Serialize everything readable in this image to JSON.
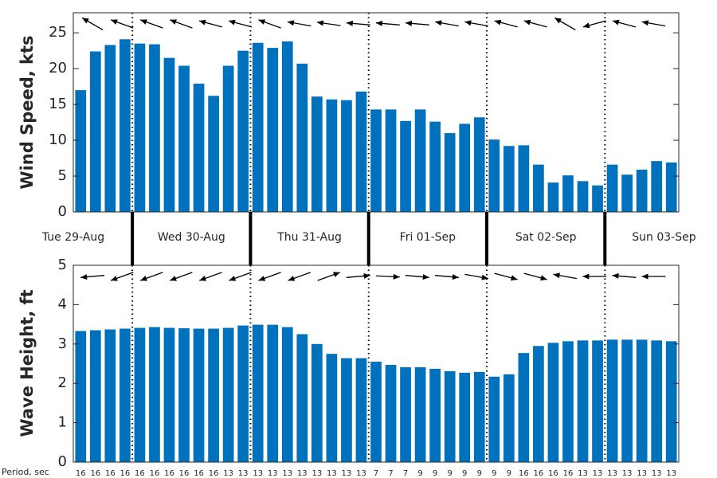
{
  "chart_data": [
    {
      "type": "bar",
      "ylabel": "Wind Speed, kts",
      "color": "#0072bd",
      "ylim": [
        0,
        27.8
      ],
      "yticks": [
        0,
        5,
        10,
        15,
        20,
        25
      ],
      "values": [
        17,
        22.4,
        23.3,
        24.1,
        23.5,
        23.4,
        21.5,
        20.4,
        17.9,
        16.2,
        20.4,
        22.5,
        23.6,
        22.9,
        23.8,
        20.7,
        16.1,
        15.7,
        15.6,
        16.8,
        14.3,
        14.3,
        12.7,
        14.3,
        12.6,
        11.0,
        12.3,
        13.2,
        10.1,
        9.2,
        9.3,
        6.6,
        4.1,
        5.1,
        4.3,
        3.7,
        6.6,
        5.2,
        5.9,
        7.1,
        6.9
      ],
      "direction_deg": [
        150,
        160,
        160,
        160,
        165,
        165,
        160,
        170,
        172,
        175,
        175,
        175,
        170,
        170,
        165,
        165,
        150,
        195,
        165,
        170
      ]
    },
    {
      "type": "bar",
      "ylabel": "Wave Height, ft",
      "color": "#0072bd",
      "ylim": [
        0,
        5
      ],
      "yticks": [
        0,
        1,
        2,
        3,
        4,
        5
      ],
      "values": [
        3.33,
        3.35,
        3.37,
        3.39,
        3.41,
        3.43,
        3.41,
        3.4,
        3.39,
        3.39,
        3.41,
        3.47,
        3.49,
        3.49,
        3.43,
        3.25,
        3.0,
        2.75,
        2.64,
        2.64,
        2.55,
        2.47,
        2.41,
        2.41,
        2.37,
        2.31,
        2.27,
        2.29,
        2.17,
        2.23,
        2.77,
        2.95,
        3.03,
        3.07,
        3.09,
        3.09,
        3.11,
        3.11,
        3.11,
        3.09,
        3.07
      ],
      "direction_deg": [
        185,
        200,
        200,
        200,
        200,
        200,
        200,
        200,
        20,
        5,
        -3,
        -5,
        -5,
        -10,
        -15,
        -15,
        170,
        180,
        175,
        180
      ]
    }
  ],
  "days": [
    {
      "label": "Tue 29-Aug",
      "count": 4
    },
    {
      "label": "Wed 30-Aug",
      "count": 8
    },
    {
      "label": "Thu 31-Aug",
      "count": 8
    },
    {
      "label": "Fri 01-Sep",
      "count": 8
    },
    {
      "label": "Sat 02-Sep",
      "count": 8
    },
    {
      "label": "Sun 03-Sep",
      "count": 5
    }
  ],
  "period": {
    "label": "Period, sec",
    "values": [
      16,
      16,
      16,
      16,
      16,
      16,
      16,
      16,
      16,
      16,
      13,
      13,
      13,
      13,
      13,
      13,
      13,
      13,
      13,
      13,
      7,
      7,
      7,
      9,
      9,
      9,
      9,
      9,
      9,
      9,
      16,
      16,
      16,
      16,
      13,
      13,
      13,
      13,
      13,
      13,
      13
    ]
  }
}
